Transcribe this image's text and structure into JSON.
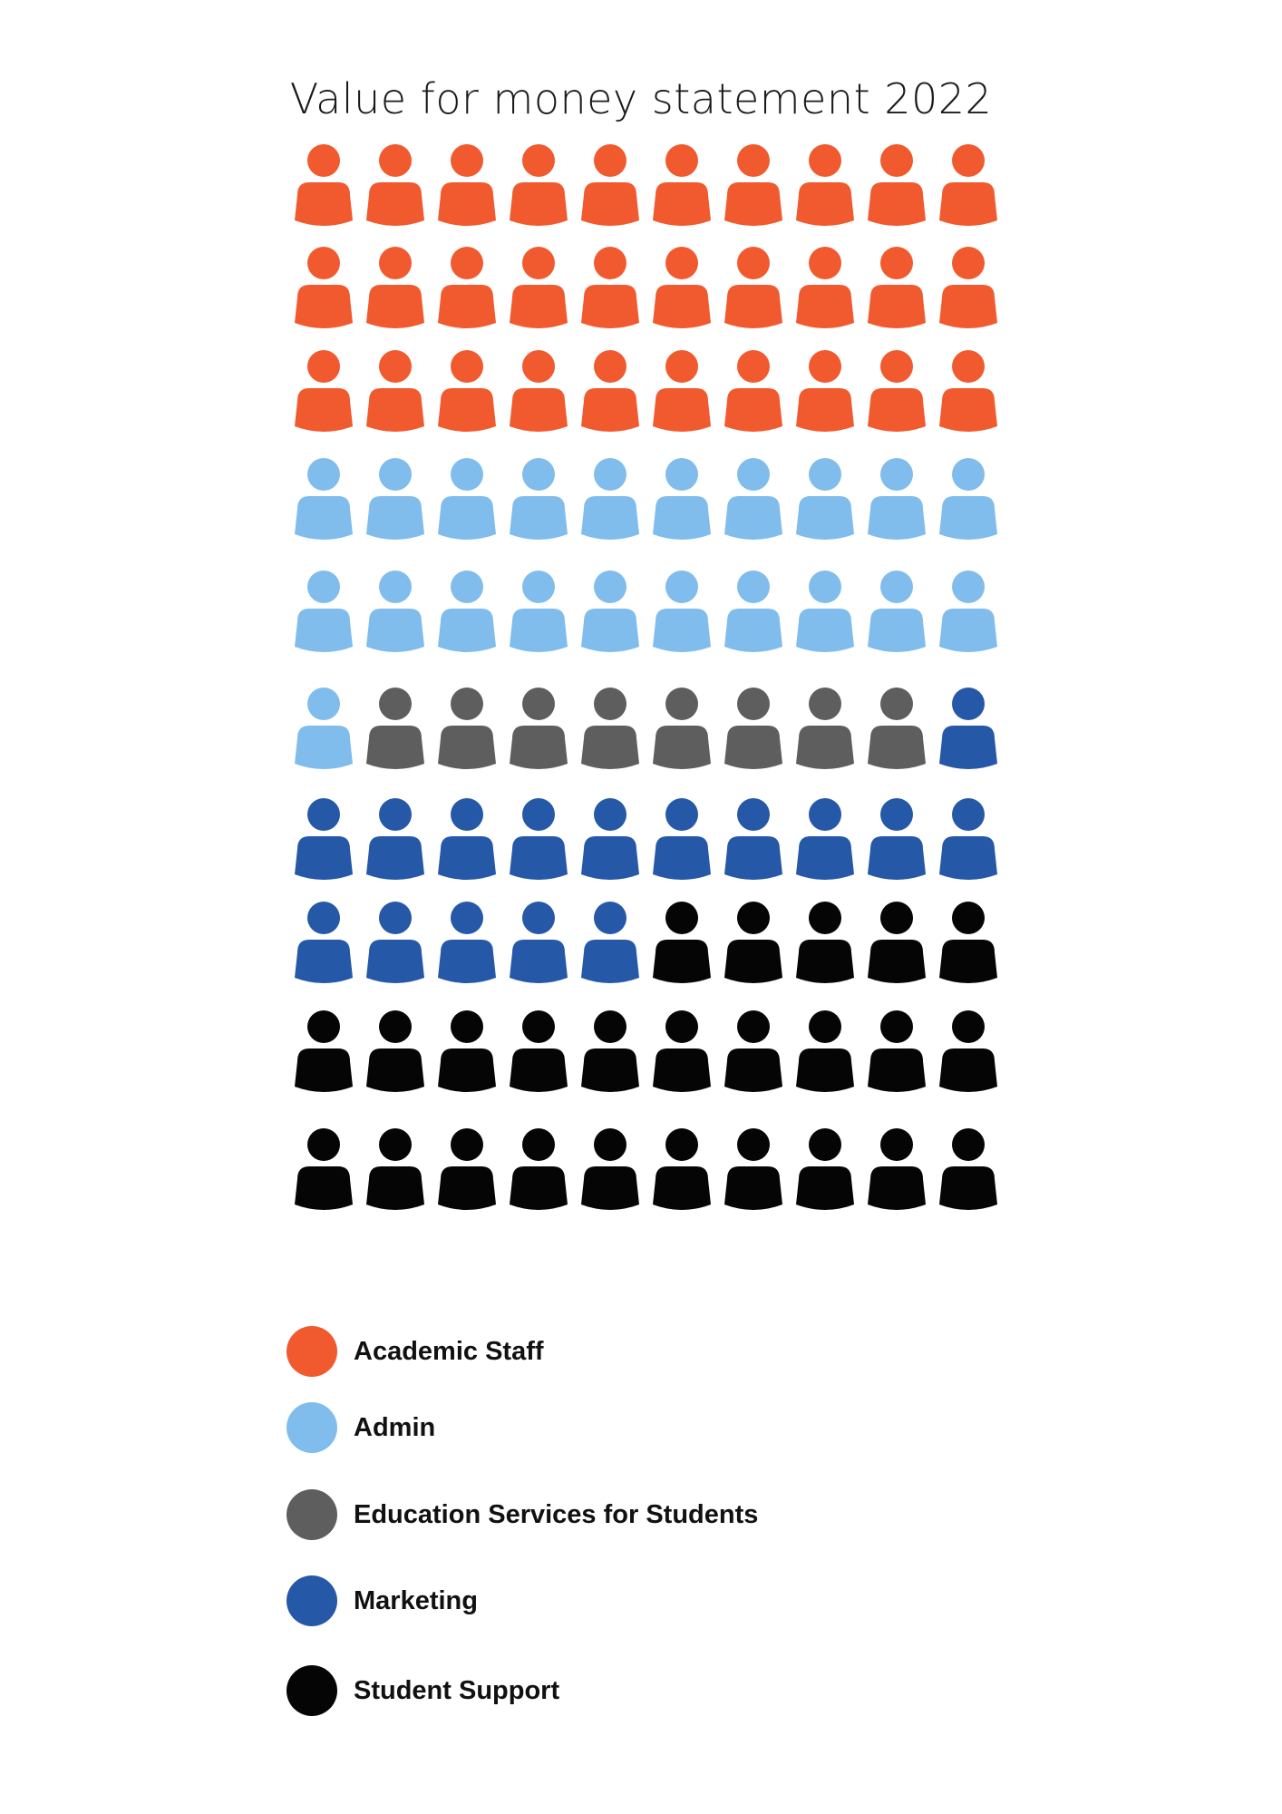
{
  "title": "Value for money statement 2022",
  "chart_data": {
    "type": "pictogram",
    "title": "Value for money statement 2022",
    "grid": {
      "rows": 10,
      "columns": 10,
      "total_icons": 100
    },
    "categories": [
      "Academic Staff",
      "Admin",
      "Education Services for Students",
      "Marketing",
      "Student Support"
    ],
    "values": [
      30,
      21,
      8,
      16,
      25
    ],
    "series": [
      {
        "name": "Academic Staff",
        "value": 30,
        "color": "#f15a2e"
      },
      {
        "name": "Admin",
        "value": 21,
        "color": "#80bdec"
      },
      {
        "name": "Education Services for Students",
        "value": 8,
        "color": "#5e5e5e"
      },
      {
        "name": "Marketing",
        "value": 16,
        "color": "#2658a8"
      },
      {
        "name": "Student Support",
        "value": 25,
        "color": "#050505"
      }
    ],
    "icon": "person-icon",
    "legend_position": "bottom-left"
  }
}
